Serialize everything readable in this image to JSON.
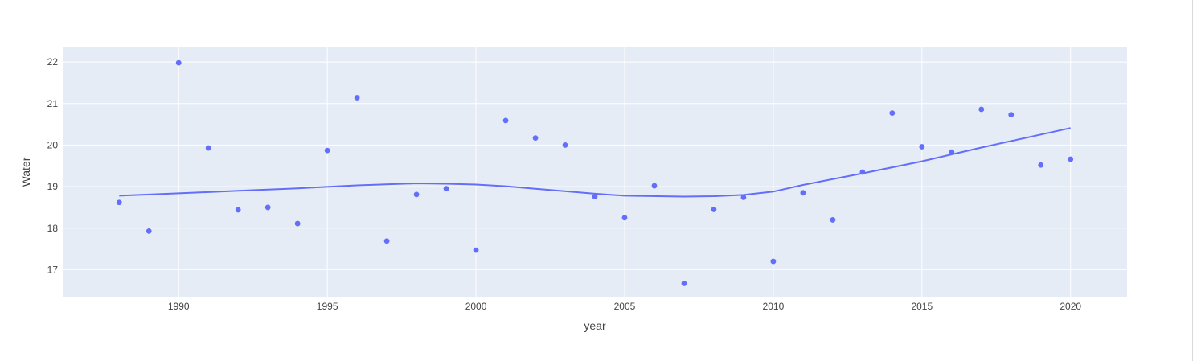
{
  "chart_data": {
    "type": "scatter",
    "title": "",
    "xlabel": "year",
    "ylabel": "Water",
    "xlim": [
      1986.1,
      2021.9
    ],
    "ylim": [
      16.35,
      22.35
    ],
    "x_ticks": [
      1990,
      1995,
      2000,
      2005,
      2010,
      2015,
      2020
    ],
    "y_ticks": [
      17,
      18,
      19,
      20,
      21,
      22
    ],
    "grid": true,
    "legend": "none",
    "colors": {
      "plot_bg": "#e5ecf6",
      "grid": "#ffffff",
      "marker": "#636efa",
      "line": "#636efa"
    },
    "series": [
      {
        "mode": "markers",
        "x": [
          1988,
          1989,
          1990,
          1991,
          1992,
          1993,
          1994,
          1995,
          1996,
          1997,
          1998,
          1999,
          2000,
          2001,
          2002,
          2003,
          2004,
          2005,
          2006,
          2007,
          2008,
          2009,
          2010,
          2011,
          2012,
          2013,
          2014,
          2015,
          2016,
          2017,
          2018,
          2019,
          2020
        ],
        "y": [
          18.62,
          17.93,
          21.98,
          19.93,
          18.44,
          18.5,
          18.11,
          19.87,
          21.14,
          17.69,
          18.81,
          18.95,
          17.47,
          20.59,
          20.17,
          20.0,
          18.76,
          18.25,
          19.02,
          16.67,
          18.45,
          18.74,
          17.2,
          18.85,
          18.2,
          19.35,
          20.77,
          19.96,
          19.83,
          20.86,
          20.73,
          19.52,
          19.66
        ]
      },
      {
        "mode": "lines",
        "x": [
          1988,
          1990,
          1992,
          1994,
          1996,
          1998,
          1999,
          2000,
          2001,
          2002,
          2004,
          2005,
          2007,
          2008,
          2009,
          2010,
          2011,
          2013,
          2015,
          2017,
          2020
        ],
        "y": [
          18.78,
          18.84,
          18.9,
          18.96,
          19.03,
          19.08,
          19.07,
          19.05,
          19.01,
          18.95,
          18.83,
          18.78,
          18.76,
          18.77,
          18.8,
          18.88,
          19.04,
          19.32,
          19.61,
          19.94,
          20.41
        ]
      }
    ]
  }
}
